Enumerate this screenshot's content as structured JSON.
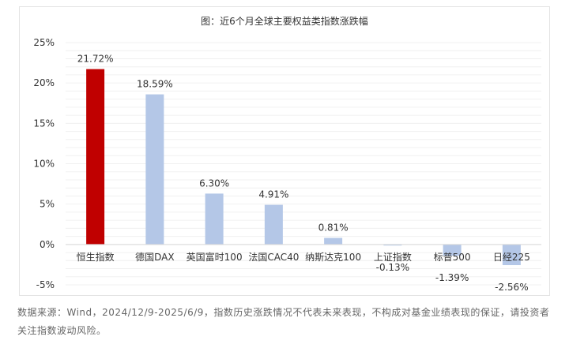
{
  "chart_data": {
    "type": "bar",
    "title": "图：近6个月全球主要权益类指数涨跌幅",
    "categories": [
      "恒生指数",
      "德国DAX",
      "英国富时100",
      "法国CAC40",
      "纳斯达克100",
      "上证指数",
      "标普500",
      "日经225"
    ],
    "values": [
      21.72,
      18.59,
      6.3,
      4.91,
      0.81,
      -0.13,
      -1.39,
      -2.56
    ],
    "value_labels": [
      "21.72%",
      "18.59%",
      "6.30%",
      "4.91%",
      "0.81%",
      "-0.13%",
      "-1.39%",
      "-2.56%"
    ],
    "y_ticks": [
      25,
      20,
      15,
      10,
      5,
      0,
      -5
    ],
    "y_tick_labels": [
      "25%",
      "20%",
      "15%",
      "10%",
      "5%",
      "0%",
      "-5%"
    ],
    "ylim": [
      -5,
      25
    ],
    "colors": {
      "highlight": "#c00000",
      "default": "#b4c7e7",
      "grid": "#f0f0f0",
      "axis": "#d9d9d9"
    },
    "grid": true,
    "legend": "none"
  },
  "footer": {
    "source_note": "数据来源：Wind，2024/12/9-2025/6/9，指数历史涨跌情况不代表未来表现，不构成对基金业绩表现的保证，请投资者关注指数波动风险。"
  }
}
